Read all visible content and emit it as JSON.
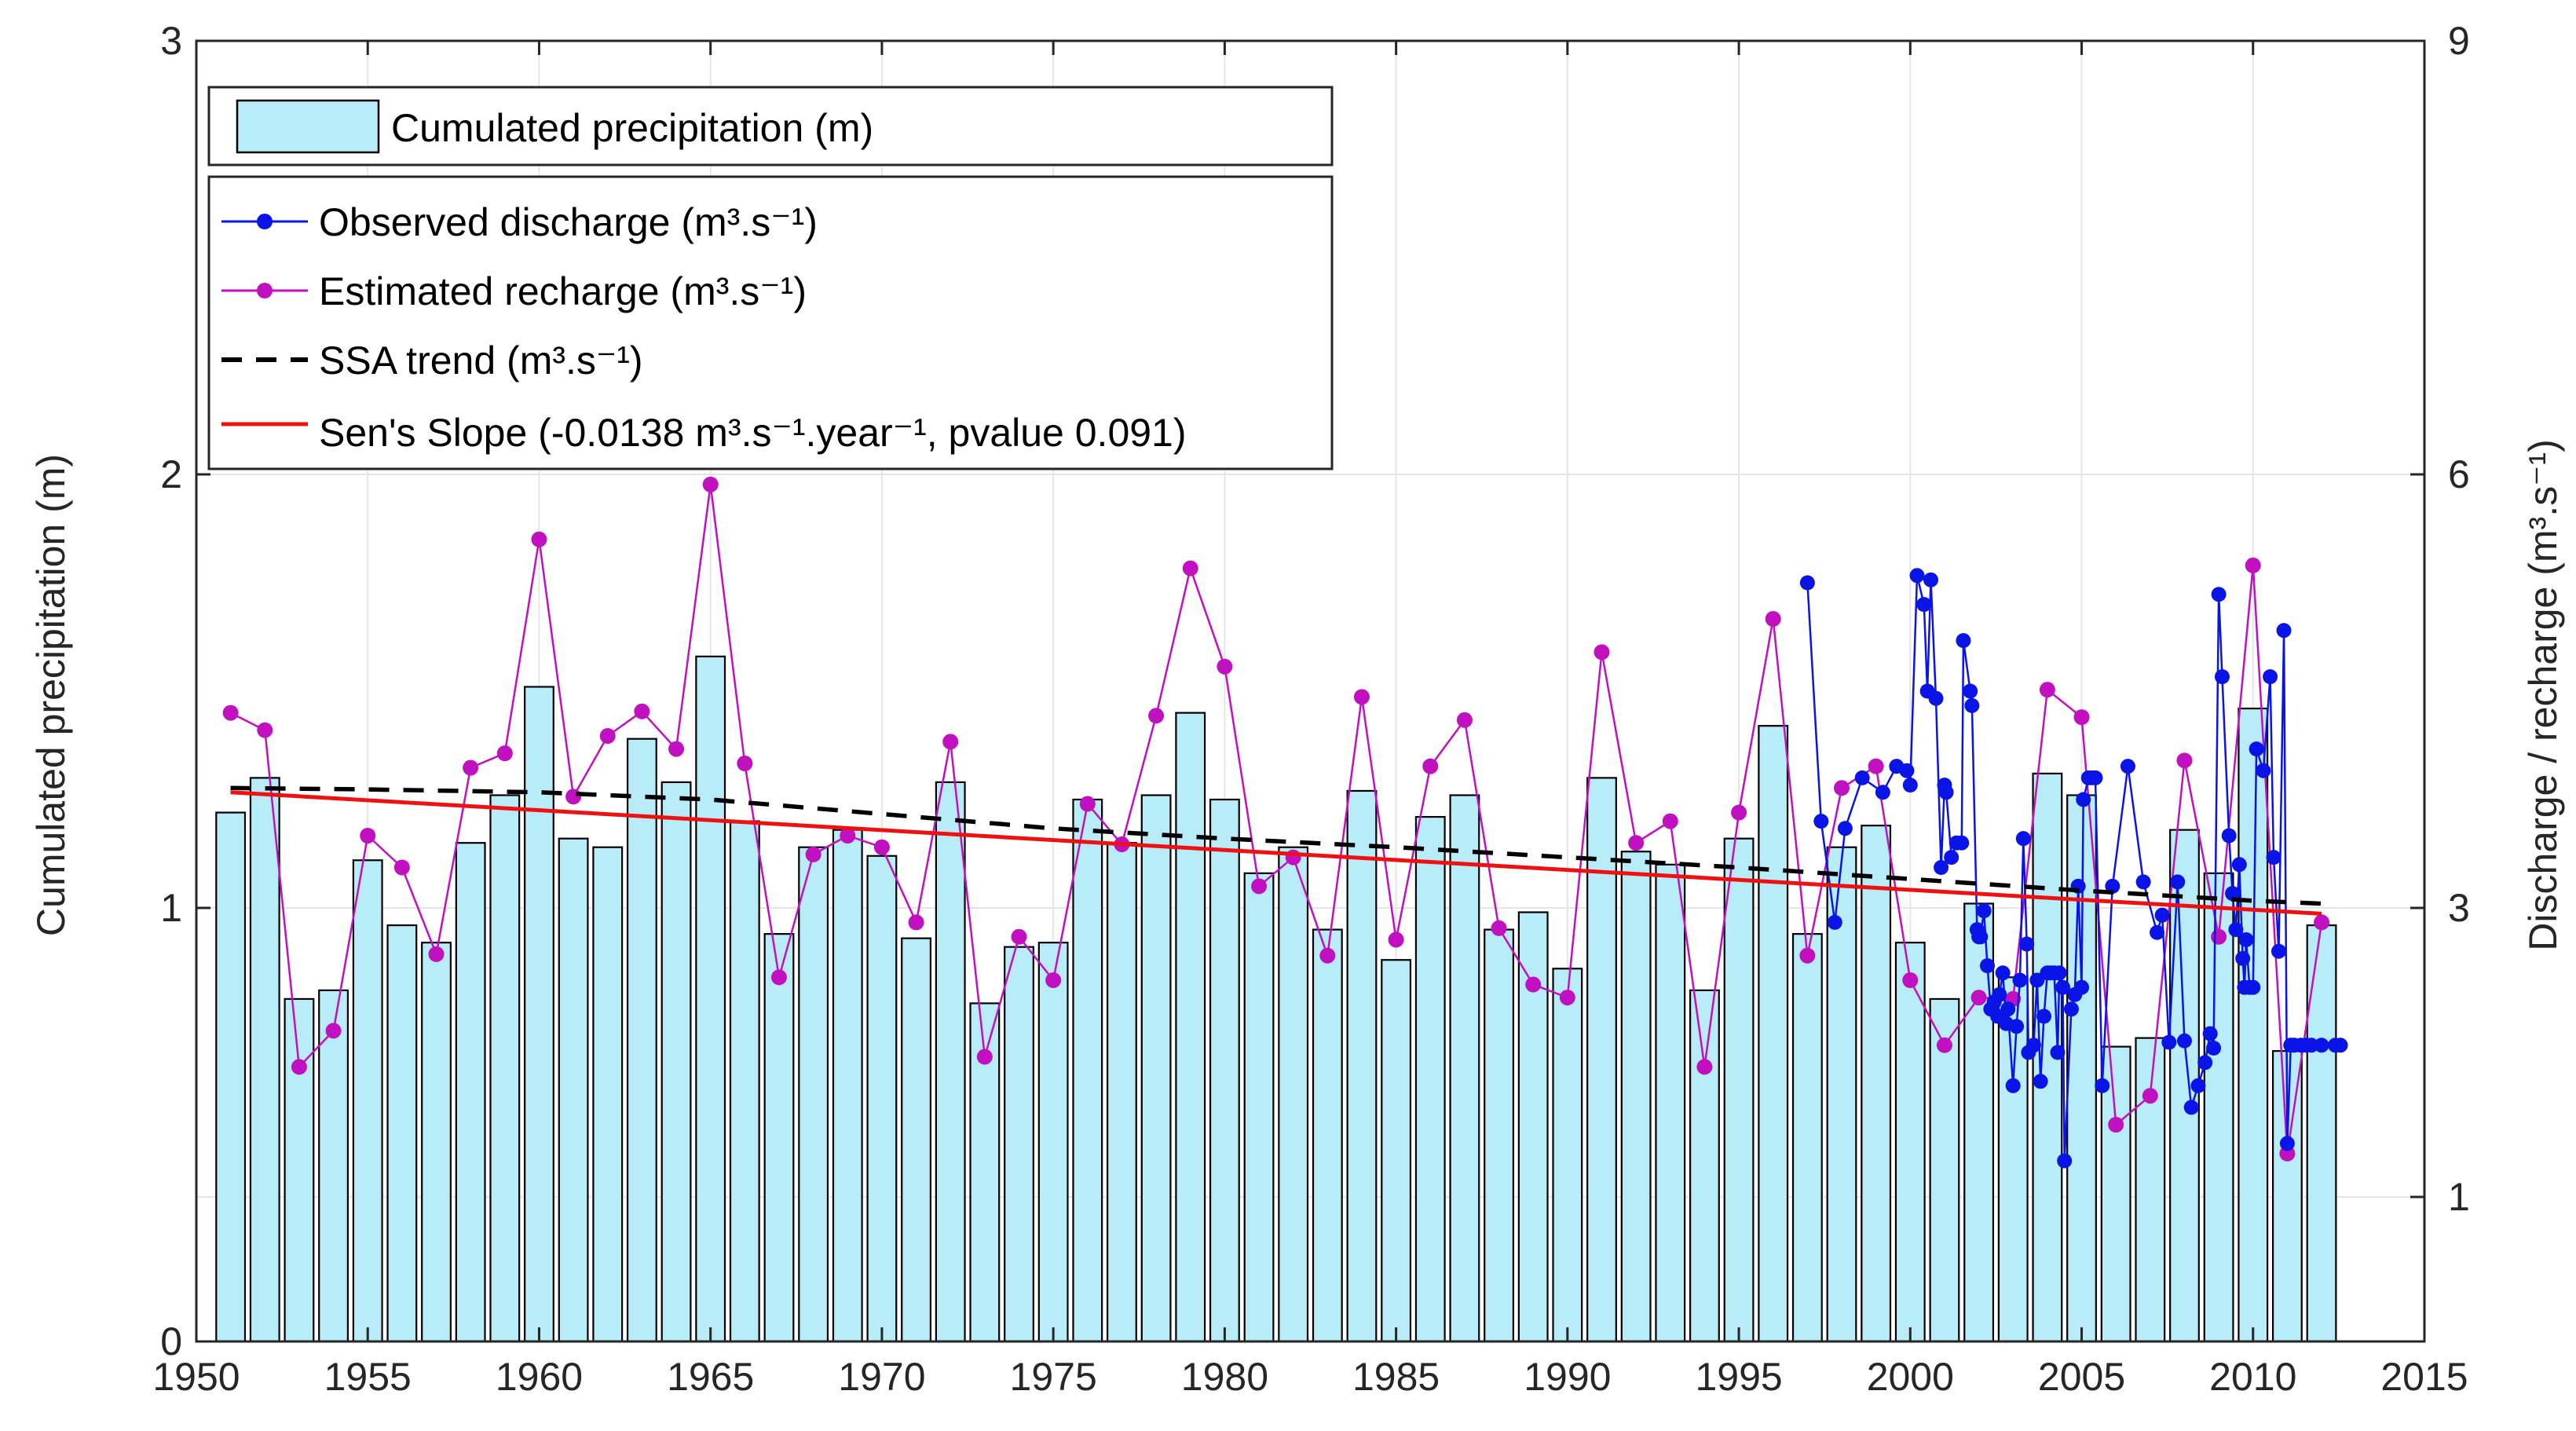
{
  "chart_data": {
    "type": "bar+line",
    "title": "",
    "xlabel": "",
    "ylabel_left": "Cumulated precipitation (m)",
    "ylabel_right": "Discharge / recharge (m³.s⁻¹)",
    "xlim": [
      1950,
      2015
    ],
    "xticks": [
      1950,
      1955,
      1960,
      1965,
      1970,
      1975,
      1980,
      1985,
      1990,
      1995,
      2000,
      2005,
      2010,
      2015
    ],
    "ylim_left": [
      0,
      3
    ],
    "yticks_left": [
      0,
      1,
      2,
      3
    ],
    "yticks_right": [
      1,
      3,
      6,
      9
    ],
    "grid": true,
    "legend_location": "top-left",
    "legend": {
      "precip": "Cumulated precipitation (m)",
      "observed": "Observed discharge (m³.s⁻¹)",
      "recharge": "Estimated recharge (m³.s⁻¹)",
      "ssa": "SSA trend (m³.s⁻¹)",
      "sen": "Sen's Slope (-0.0138 m³.s⁻¹.year⁻¹, pvalue 0.091)"
    },
    "colors": {
      "bar_fill": "#b8ecf8",
      "bar_edge": "#000000",
      "observed": "#0a14e6",
      "recharge": "#c010c0",
      "ssa": "#000000",
      "sen": "#ee1111",
      "grid": "#e6e6e6"
    },
    "precipitation": {
      "years": [
        1951,
        1952,
        1953,
        1954,
        1955,
        1956,
        1957,
        1958,
        1959,
        1960,
        1961,
        1962,
        1963,
        1964,
        1965,
        1966,
        1967,
        1968,
        1969,
        1970,
        1971,
        1972,
        1973,
        1974,
        1975,
        1976,
        1977,
        1978,
        1979,
        1980,
        1981,
        1982,
        1983,
        1984,
        1985,
        1986,
        1987,
        1988,
        1989,
        1990,
        1991,
        1992,
        1993,
        1994,
        1995,
        1996,
        1997,
        1998,
        1999,
        2000,
        2001,
        2002,
        2003,
        2004,
        2005,
        2006,
        2007,
        2008,
        2009,
        2010,
        2011,
        2012
      ],
      "values": [
        1.22,
        1.3,
        0.79,
        0.81,
        1.11,
        0.96,
        0.92,
        1.15,
        1.26,
        1.51,
        1.16,
        1.14,
        1.39,
        1.29,
        1.58,
        1.2,
        0.94,
        1.14,
        1.18,
        1.12,
        0.93,
        1.29,
        0.78,
        0.91,
        0.92,
        1.25,
        1.15,
        1.26,
        1.45,
        1.25,
        1.08,
        1.14,
        0.95,
        1.27,
        0.88,
        1.21,
        1.26,
        0.95,
        0.99,
        0.86,
        1.3,
        1.13,
        1.1,
        0.81,
        1.16,
        1.42,
        0.94,
        1.14,
        1.19,
        0.92,
        0.79,
        1.01,
        0.84,
        1.31,
        1.26,
        0.68,
        0.7,
        1.18,
        1.08,
        1.46,
        0.67,
        0.96
      ]
    },
    "recharge": {
      "years": [
        1951,
        1952,
        1953,
        1954,
        1955,
        1956,
        1957,
        1958,
        1959,
        1960,
        1961,
        1962,
        1963,
        1964,
        1965,
        1966,
        1967,
        1968,
        1969,
        1970,
        1971,
        1972,
        1973,
        1974,
        1975,
        1976,
        1977,
        1978,
        1979,
        1980,
        1981,
        1982,
        1983,
        1984,
        1985,
        1986,
        1987,
        1988,
        1989,
        1990,
        1991,
        1992,
        1993,
        1994,
        1995,
        1996,
        1997,
        1998,
        1999,
        2000,
        2001,
        2002,
        2003,
        2004,
        2005,
        2006,
        2007,
        2008,
        2009,
        2010,
        2011,
        2012
      ],
      "values": [
        4.35,
        4.23,
        1.9,
        2.15,
        3.5,
        3.28,
        2.68,
        3.97,
        4.07,
        5.55,
        3.77,
        4.19,
        4.36,
        4.1,
        5.93,
        4.0,
        2.52,
        3.37,
        3.5,
        3.42,
        2.9,
        4.15,
        1.97,
        2.8,
        2.5,
        3.72,
        3.44,
        4.33,
        5.35,
        4.67,
        3.15,
        3.35,
        2.67,
        4.46,
        2.78,
        3.98,
        4.3,
        2.86,
        2.47,
        2.38,
        4.77,
        3.45,
        3.6,
        1.9,
        3.66,
        5.0,
        2.67,
        3.83,
        3.98,
        2.5,
        2.05,
        2.38,
        2.37,
        4.51,
        4.32,
        1.5,
        1.7,
        4.02,
        2.8,
        5.37,
        1.3,
        2.9
      ]
    },
    "observed_discharge": {
      "x": [
        1997.0,
        1997.4,
        1997.8,
        1998.1,
        1998.6,
        1999.2,
        1999.6,
        1999.9,
        2000.0,
        2000.2,
        2000.4,
        2000.5,
        2000.6,
        2000.75,
        2000.9,
        2001.0,
        2001.05,
        2001.2,
        2001.35,
        2001.5,
        2001.55,
        2001.75,
        2001.8,
        2001.95,
        2002.0,
        2002.05,
        2002.15,
        2002.25,
        2002.35,
        2002.45,
        2002.55,
        2002.6,
        2002.7,
        2002.8,
        2002.85,
        2003.0,
        2003.1,
        2003.2,
        2003.3,
        2003.4,
        2003.45,
        2003.6,
        2003.7,
        2003.8,
        2003.9,
        2004.0,
        2004.1,
        2004.2,
        2004.3,
        2004.35,
        2004.45,
        2004.5,
        2004.7,
        2004.8,
        2004.9,
        2005.0,
        2005.05,
        2005.2,
        2005.3,
        2005.4,
        2005.6,
        2005.9,
        2006.35,
        2006.8,
        2007.2,
        2007.35,
        2007.55,
        2007.8,
        2008.0,
        2008.2,
        2008.4,
        2008.6,
        2008.75,
        2008.85,
        2009.0,
        2009.1,
        2009.3,
        2009.4,
        2009.5,
        2009.6,
        2009.7,
        2009.75,
        2009.8,
        2009.9,
        2010.0,
        2010.1,
        2010.3,
        2010.5,
        2010.6,
        2010.75,
        2010.9,
        2011.0,
        2011.1,
        2011.2,
        2011.4,
        2011.55,
        2011.7,
        2012.0,
        2012.4,
        2012.55
      ],
      "y": [
        5.25,
        3.6,
        2.9,
        3.55,
        3.9,
        3.8,
        3.98,
        3.95,
        3.85,
        5.3,
        5.1,
        4.5,
        5.27,
        4.45,
        3.28,
        3.85,
        3.8,
        3.35,
        3.45,
        3.45,
        4.85,
        4.5,
        4.4,
        2.85,
        2.8,
        2.8,
        2.98,
        2.6,
        2.3,
        2.35,
        2.25,
        2.4,
        2.55,
        2.2,
        2.3,
        1.77,
        2.18,
        2.5,
        3.48,
        2.75,
        2.0,
        2.05,
        2.5,
        1.8,
        2.25,
        2.55,
        2.55,
        2.55,
        2.0,
        2.55,
        2.45,
        1.25,
        2.3,
        2.4,
        3.15,
        2.45,
        3.75,
        3.9,
        3.9,
        3.9,
        1.77,
        3.15,
        3.98,
        3.18,
        2.83,
        2.95,
        2.07,
        3.18,
        2.08,
        1.62,
        1.77,
        1.93,
        2.13,
        2.03,
        5.17,
        4.6,
        3.5,
        3.1,
        2.85,
        3.3,
        2.65,
        2.45,
        2.78,
        2.45,
        2.45,
        4.1,
        3.95,
        4.6,
        3.35,
        2.7,
        4.92,
        1.37,
        2.05,
        2.05,
        2.05,
        2.05,
        2.05,
        2.05,
        2.05,
        2.05
      ]
    },
    "ssa_trend": {
      "x": [
        1951,
        1955,
        1960,
        1965,
        1970,
        1975,
        1980,
        1985,
        1990,
        1995,
        2000,
        2005,
        2010,
        2012
      ],
      "y": [
        3.83,
        3.82,
        3.8,
        3.75,
        3.65,
        3.55,
        3.48,
        3.42,
        3.35,
        3.28,
        3.2,
        3.12,
        3.05,
        3.03
      ]
    },
    "sen_slope": {
      "x": [
        1951,
        2012
      ],
      "y": [
        3.8,
        2.96
      ]
    }
  }
}
